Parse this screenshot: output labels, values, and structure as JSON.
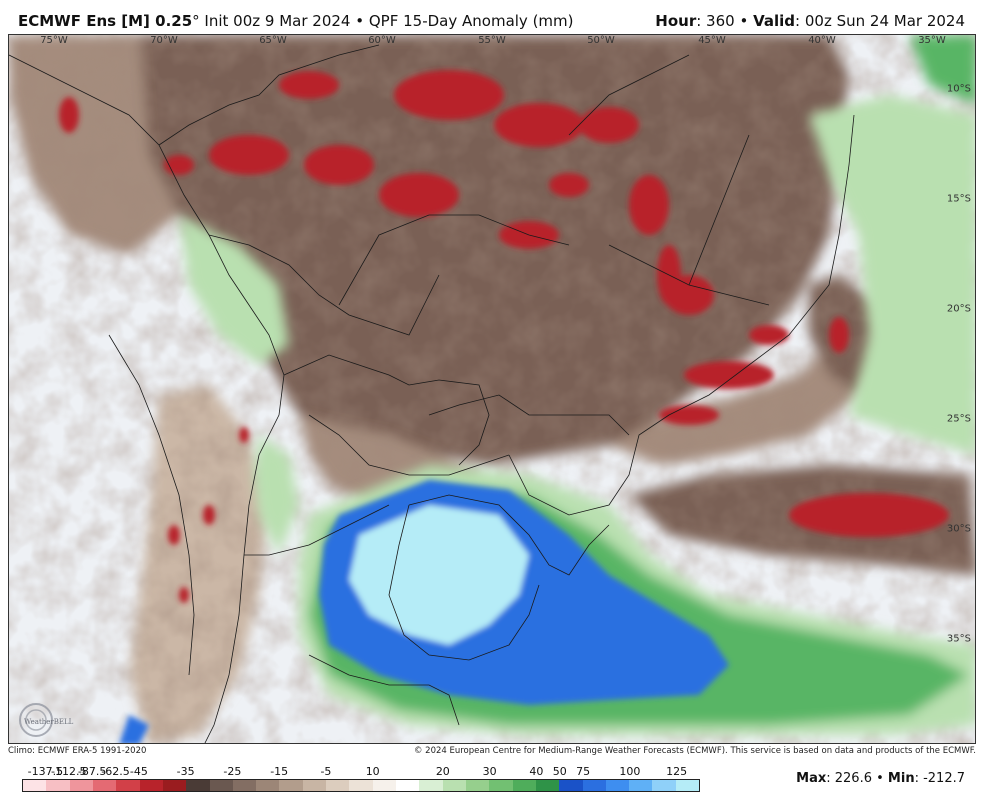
{
  "header": {
    "model": "ECMWF Ens [M] 0.25",
    "degree_symbol": "°",
    "init": "Init 00z 9 Mar 2024",
    "bullet": "•",
    "product": "QPF 15-Day Anomaly (mm)",
    "hour_label": "Hour",
    "hour_value": ": 360",
    "valid_label": "Valid",
    "valid_value": ": 00z Sun 24 Mar 2024"
  },
  "map": {
    "longitude_labels": [
      "75°W",
      "70°W",
      "65°W",
      "60°W",
      "55°W",
      "50°W",
      "45°W",
      "40°W",
      "35°W"
    ],
    "latitude_labels": [
      "10°S",
      "15°S",
      "20°S",
      "25°S",
      "30°S",
      "35°S"
    ],
    "colors": {
      "strong_dry": "#b8232b",
      "dry": "#7a6055",
      "moderate_dry": "#a58c7d",
      "light_dry": "#cbb7a6",
      "near_normal": "#eef1f5",
      "light_wet": "#b9e0b0",
      "wet": "#59b565",
      "very_wet": "#2b6fe0",
      "extreme_wet": "#b5ecf7",
      "borders": "#1a1a1a"
    },
    "watermark": "WeatherBELL"
  },
  "footer": {
    "climo": "Climo: ECMWF ERA-5 1991-2020",
    "copyright": "© 2024 European Centre for Medium-Range Weather Forecasts (ECMWF). This service is based on data and products of the ECMWF."
  },
  "colorbar": {
    "labels": [
      "-137.5",
      "-112.5",
      "-87.5",
      "-62.5",
      "-45",
      "-35",
      "-25",
      "-15",
      "-5",
      "10",
      "20",
      "30",
      "40",
      "50",
      "75",
      "100",
      "125"
    ],
    "swatches": [
      "#fde3e6",
      "#f7bfc4",
      "#ef959c",
      "#e46a73",
      "#d24048",
      "#b8232b",
      "#9a1c1f",
      "#4a3b36",
      "#6a5850",
      "#836e63",
      "#9c8677",
      "#b29d8c",
      "#c8b5a4",
      "#dccdbe",
      "#ece2d7",
      "#f6f1eb",
      "#ffffff",
      "#d9efd4",
      "#b9e0b0",
      "#96cf8d",
      "#72c072",
      "#4fad5b",
      "#2f9348",
      "#1a52c8",
      "#2b6fe0",
      "#3e8ef0",
      "#5fb0f6",
      "#8fd0f9",
      "#b5ecf7"
    ]
  },
  "stats": {
    "max_label": "Max",
    "max_value": ": 226.6",
    "sep": " • ",
    "min_label": "Min",
    "min_value": ": -212.7"
  }
}
